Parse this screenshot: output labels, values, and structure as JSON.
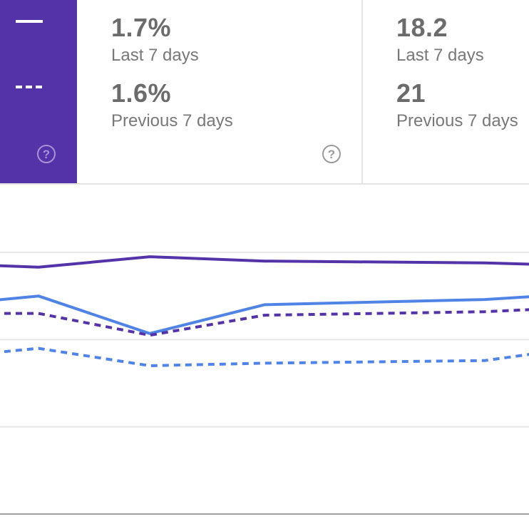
{
  "legend": {
    "current_style": "solid",
    "previous_style": "dashed",
    "background": "#5432a8",
    "help_icon": "question-circle-icon",
    "help_glyph": "?"
  },
  "metric_a": {
    "current_value": "1.7%",
    "current_caption": "Last 7 days",
    "previous_value": "1.6%",
    "previous_caption": "Previous 7 days",
    "help_icon": "question-circle-icon",
    "help_glyph": "?"
  },
  "metric_b": {
    "current_value": "18.2",
    "current_caption": "Last 7 days",
    "previous_value": "21",
    "previous_caption": "Previous 7 days"
  },
  "chart_data": {
    "type": "line",
    "x": [
      0,
      1,
      2,
      3,
      4,
      5
    ],
    "ylim": [
      0,
      3
    ],
    "grid": true,
    "gridlines_y": [
      0,
      1,
      2,
      3
    ],
    "series": [
      {
        "color": "#5432a8",
        "dashed": false,
        "values": [
          2.85,
          2.83,
          2.95,
          2.9,
          2.88,
          2.86
        ]
      },
      {
        "color": "#5083e6",
        "dashed": false,
        "values": [
          2.45,
          2.5,
          2.07,
          2.4,
          2.46,
          2.5
        ]
      },
      {
        "color": "#5432a8",
        "dashed": true,
        "values": [
          2.3,
          2.3,
          2.05,
          2.28,
          2.32,
          2.35
        ]
      },
      {
        "color": "#5083e6",
        "dashed": true,
        "values": [
          1.85,
          1.9,
          1.7,
          1.73,
          1.76,
          1.85
        ]
      }
    ]
  }
}
